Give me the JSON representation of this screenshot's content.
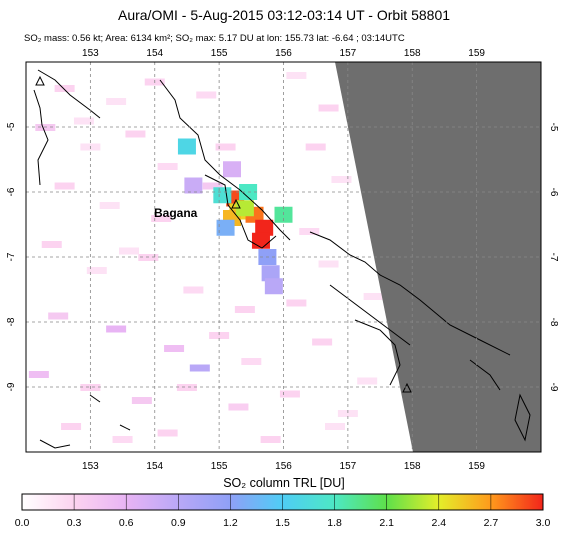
{
  "header": {
    "title": "Aura/OMI -  5-Aug-2015 03:12-03:14 UT - Orbit 58801",
    "subtitle": "SO₂ mass: 0.56 kt; Area: 6134 km²; SO₂ max: 5.17 DU at lon: 155.73 lat: -6.64 ; 03:14UTC"
  },
  "volcano": {
    "name": "Bagana",
    "lon": 155.2,
    "lat": -6.14
  },
  "colorbar": {
    "title": "SO₂ column TRL [DU]",
    "ticks": [
      "0.0",
      "0.3",
      "0.6",
      "0.9",
      "1.2",
      "1.5",
      "1.8",
      "2.1",
      "2.4",
      "2.7",
      "3.0"
    ],
    "colors": [
      "#ffffff",
      "#fcd3f0",
      "#e8b4f4",
      "#b9a8f7",
      "#8fa0f7",
      "#4fcdf5",
      "#4de8c4",
      "#5ee04a",
      "#e4ee2a",
      "#ff9a1c",
      "#f2251b"
    ]
  },
  "chart_data": {
    "type": "heatmap",
    "title": "Aura/OMI -  5-Aug-2015 03:12-03:14 UT - Orbit 58801",
    "xlabel": "",
    "ylabel": "",
    "xlim": [
      152,
      160
    ],
    "ylim": [
      -10,
      -4
    ],
    "x_ticks": [
      "153",
      "154",
      "155",
      "156",
      "157",
      "158",
      "159"
    ],
    "y_ticks": [
      "-5",
      "-6",
      "-7",
      "-8",
      "-9"
    ],
    "colorbar_range": [
      0,
      3
    ],
    "colorbar_label": "SO₂ column TRL [DU]",
    "no_data_region": "east of orbit swath (grey)",
    "cells": [
      {
        "lon": 155.25,
        "lat": -6.1,
        "value": 2.9
      },
      {
        "lon": 155.3,
        "lat": -6.3,
        "value": 2.5
      },
      {
        "lon": 155.55,
        "lat": -6.35,
        "value": 2.8
      },
      {
        "lon": 155.7,
        "lat": -6.55,
        "value": 3.0
      },
      {
        "lon": 155.65,
        "lat": -6.75,
        "value": 3.0
      },
      {
        "lon": 155.2,
        "lat": -6.4,
        "value": 2.6
      },
      {
        "lon": 155.4,
        "lat": -6.25,
        "value": 2.3
      },
      {
        "lon": 155.05,
        "lat": -6.05,
        "value": 1.7
      },
      {
        "lon": 155.45,
        "lat": -6.0,
        "value": 1.8
      },
      {
        "lon": 156.0,
        "lat": -6.35,
        "value": 1.9
      },
      {
        "lon": 155.1,
        "lat": -6.55,
        "value": 1.3
      },
      {
        "lon": 155.75,
        "lat": -7.0,
        "value": 1.2
      },
      {
        "lon": 155.8,
        "lat": -7.25,
        "value": 1.0
      },
      {
        "lon": 155.85,
        "lat": -7.45,
        "value": 0.9
      },
      {
        "lon": 154.5,
        "lat": -5.3,
        "value": 1.6
      },
      {
        "lon": 154.6,
        "lat": -5.9,
        "value": 0.8
      },
      {
        "lon": 155.2,
        "lat": -5.65,
        "value": 0.7
      }
    ]
  }
}
